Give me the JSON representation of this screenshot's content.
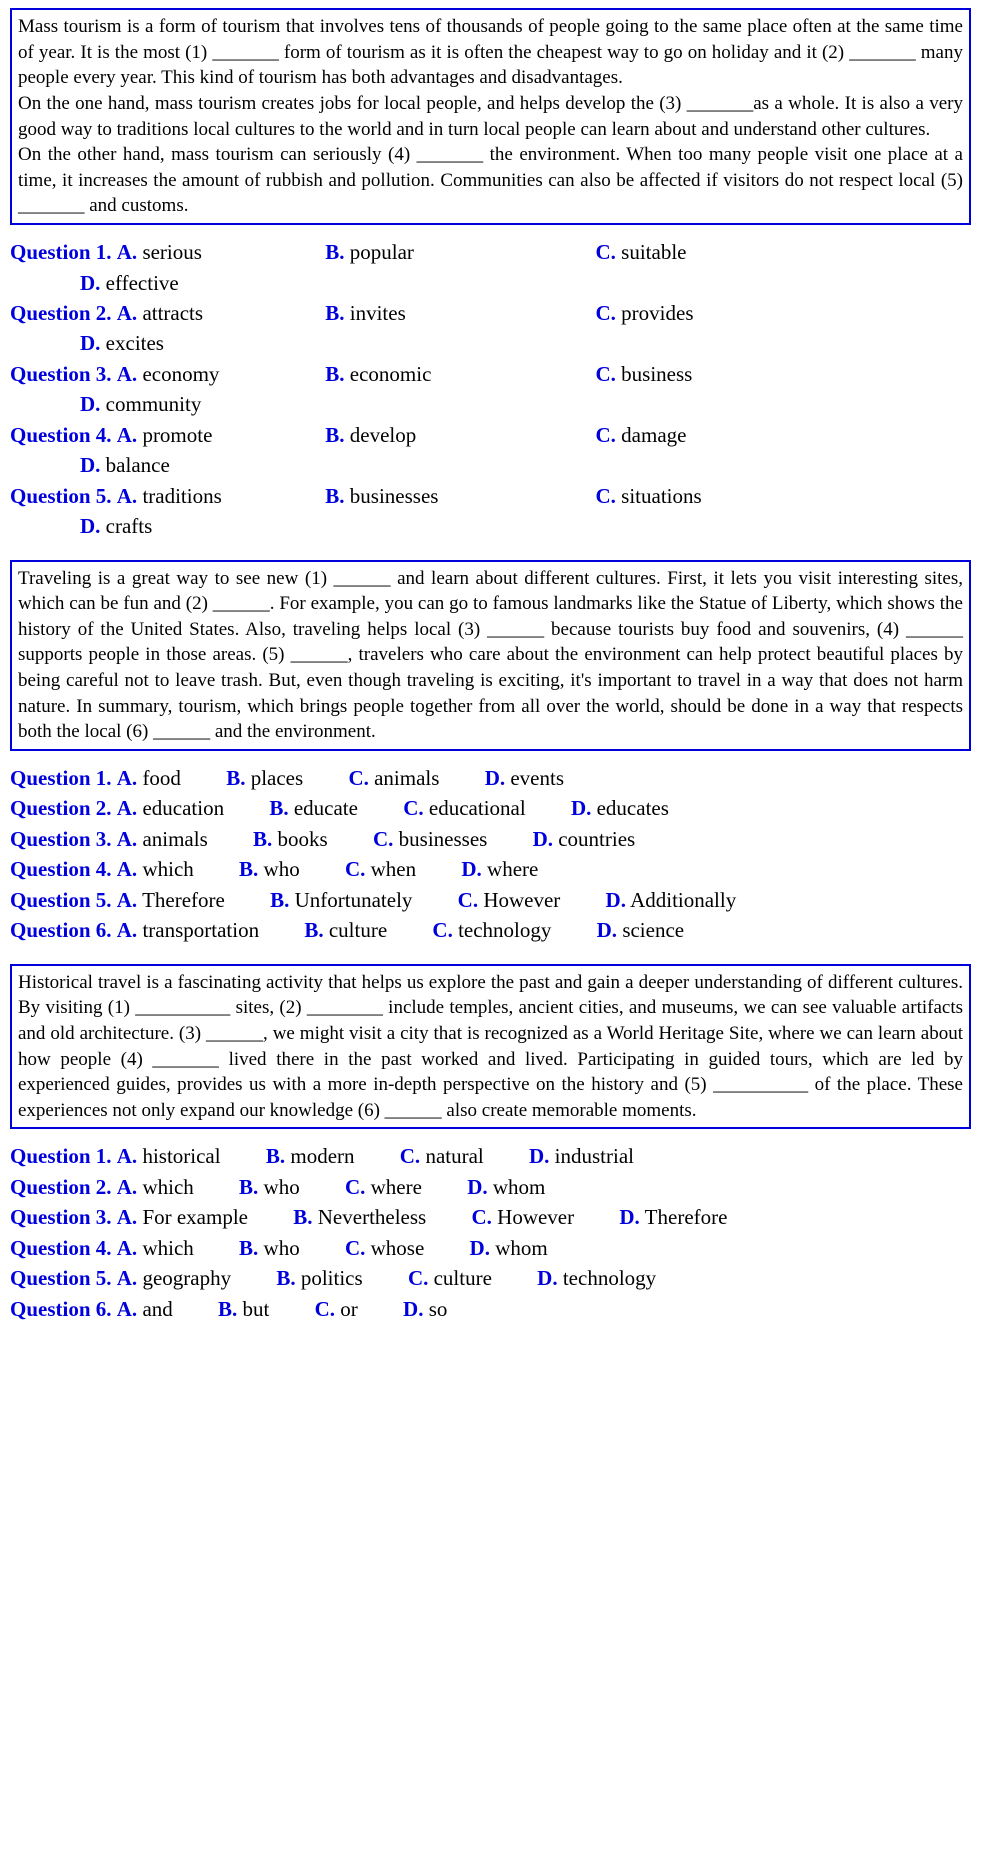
{
  "section1": {
    "passage": "        Mass tourism is a form of tourism that involves tens of thousands of people going to the same place often at the same time of year. It is the most (1) _______ form of tourism as it is often the cheapest way to go on holiday and it (2) _______ many people every year. This kind of tourism has both advantages and disadvantages.\nOn the one hand, mass tourism creates jobs for local people, and helps develop the (3) _______as a whole. It is also a very good way to traditions local cultures to the world and in turn local people can learn about and understand other cultures.\nOn the other hand, mass tourism can seriously (4) _______ the environment. When too many people visit one place at a time, it increases the amount of rubbish and pollution. Communities can also be affected if visitors do not respect local (5) _______ and customs.",
    "q1": {
      "label": "Question 1.",
      "A": "serious",
      "B": "popular",
      "C": "suitable",
      "D": "effective"
    },
    "q2": {
      "label": "Question 2.",
      "A": "attracts",
      "B": "invites",
      "C": "provides",
      "D": "excites"
    },
    "q3": {
      "label": "Question 3.",
      "A": "economy",
      "B": "economic",
      "C": "business",
      "D": "community"
    },
    "q4": {
      "label": "Question 4.",
      "A": "promote",
      "B": "develop",
      "C": "damage",
      "D": "balance"
    },
    "q5": {
      "label": "Question 5.",
      "A": "traditions",
      "B": "businesses",
      "C": "situations",
      "D": "crafts"
    }
  },
  "section2": {
    "passage": "Traveling is a great way to see new (1) ______ and learn about different cultures. First, it lets you visit interesting sites, which can be fun and (2) ______. For example, you can go to famous landmarks like the Statue of Liberty, which shows the history of the United States. Also, traveling helps local (3) ______ because tourists buy food and souvenirs, (4) ______ supports people in those areas. (5) ______, travelers who care about the environment can help protect beautiful places by being careful not to leave trash. But, even though traveling is exciting, it's important to travel in a way that does not harm nature. In summary, tourism, which brings people together from all over the world, should be done in a way that respects both the local (6) ______ and the environment.",
    "q1": {
      "label": "Question 1.",
      "A": "food",
      "B": "places",
      "C": "animals",
      "D": "events"
    },
    "q2": {
      "label": "Question 2.",
      "A": "education",
      "B": "educate",
      "C": "educational",
      "D": "educates"
    },
    "q3": {
      "label": "Question 3.",
      "A": "animals",
      "B": "books",
      "C": "businesses",
      "D": "countries"
    },
    "q4": {
      "label": "Question 4.",
      "A": "which",
      "B": "who",
      "C": "when",
      "D": "where"
    },
    "q5": {
      "label": "Question 5.",
      "A": "Therefore",
      "B": "Unfortunately",
      "C": "However",
      "D": "Additionally"
    },
    "q6": {
      "label": "Question 6.",
      "A": "transportation",
      "B": "culture",
      "C": "technology",
      "D": "science"
    }
  },
  "section3": {
    "passage": "Historical travel is a fascinating activity that helps us explore the past and gain a deeper understanding of different cultures. By visiting (1) __________ sites, (2) ________ include temples, ancient cities, and museums, we can see valuable artifacts and old architecture. (3) ______, we might visit a city that is recognized as a World Heritage Site, where we can learn about how people (4) _______ lived there in the past worked and lived. Participating in guided tours, which are led by experienced guides, provides us with a more in-depth perspective on the history and (5) __________ of the place. These experiences not only expand our knowledge (6) ______ also create memorable moments.",
    "q1": {
      "label": "Question 1.",
      "A": "historical",
      "B": "modern",
      "C": "natural",
      "D": "industrial"
    },
    "q2": {
      "label": "Question 2.",
      "A": "which",
      "B": "who",
      "C": "where",
      "D": "whom"
    },
    "q3": {
      "label": "Question 3.",
      "A": "For example",
      "B": "Nevertheless",
      "C": "However",
      "D": "Therefore"
    },
    "q4": {
      "label": "Question 4.",
      "A": "which",
      "B": "who",
      "C": "whose",
      "D": "whom"
    },
    "q5": {
      "label": "Question 5.",
      "A": "geography",
      "B": "politics",
      "C": "culture",
      "D": "technology"
    },
    "q6": {
      "label": "Question 6.",
      "A": "and",
      "B": "but",
      "C": "or",
      "D": "so"
    }
  },
  "labels": {
    "A": "A.",
    "B": "B.",
    "C": "C.",
    "D": "D."
  }
}
